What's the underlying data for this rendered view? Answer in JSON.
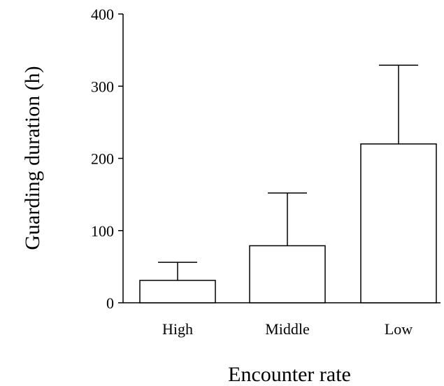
{
  "chart_data": {
    "type": "bar",
    "title": "",
    "xlabel": "Encounter rate",
    "ylabel": "Guarding duration (h)",
    "categories": [
      "High",
      "Middle",
      "Low"
    ],
    "values": [
      31,
      79,
      220
    ],
    "error_upper": [
      56,
      152,
      329
    ],
    "ylim": [
      0,
      400
    ],
    "yticks": [
      0,
      100,
      200,
      300,
      400
    ],
    "ytick_labels": [
      "0",
      "100",
      "200",
      "300",
      "400"
    ],
    "grid": false,
    "legend": "none",
    "bar_fill": "#ffffff",
    "line_color": "#000000"
  }
}
